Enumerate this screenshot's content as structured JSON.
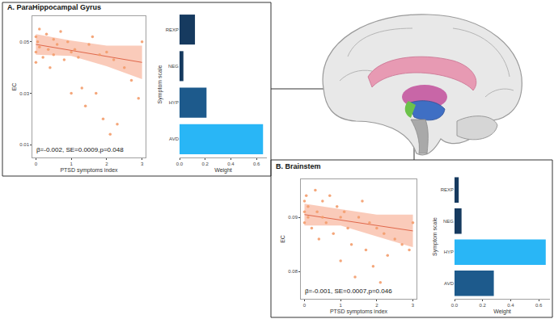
{
  "chart_data": [
    {
      "type": "scatter",
      "title": "A. ParaHippocampal Gyrus",
      "x_label": "PTSD symptoms index",
      "y_label": "EC",
      "x": [
        0,
        0,
        0,
        0.05,
        0.1,
        0.1,
        0.2,
        0.3,
        0.35,
        0.4,
        0.5,
        0.5,
        0.6,
        0.7,
        0.8,
        0.9,
        1.0,
        1.0,
        1.1,
        1.2,
        1.3,
        1.4,
        1.5,
        1.6,
        1.7,
        1.8,
        1.9,
        2.0,
        2.1,
        2.2,
        2.3,
        2.5,
        2.7,
        2.9,
        3.0
      ],
      "values": [
        0.052,
        0.046,
        0.042,
        0.05,
        0.055,
        0.048,
        0.044,
        0.053,
        0.047,
        0.04,
        0.051,
        0.045,
        0.049,
        0.054,
        0.043,
        0.05,
        0.046,
        0.03,
        0.047,
        0.044,
        0.032,
        0.025,
        0.049,
        0.052,
        0.03,
        0.045,
        0.02,
        0.046,
        0.014,
        0.043,
        0.018,
        0.04,
        0.035,
        0.028,
        0.05
      ],
      "fit": {
        "x": [
          0,
          3
        ],
        "values": [
          0.049,
          0.042
        ]
      },
      "ci": {
        "x": [
          0,
          1,
          2,
          3
        ],
        "lower": [
          0.045,
          0.0445,
          0.0405,
          0.0355
        ],
        "upper": [
          0.053,
          0.0505,
          0.0485,
          0.0485
        ]
      },
      "annotations": [
        "β=-0.002, SE=0.0009,p=0.048"
      ],
      "xlim": [
        -0.1,
        3.1
      ],
      "xticks": [
        0,
        1,
        2,
        3
      ],
      "ylim": [
        0.005,
        0.06
      ],
      "yticks": [
        0.01,
        0.03,
        0.05
      ],
      "color": "#f39c6b",
      "marker": "circle",
      "grid": false
    },
    {
      "type": "bar",
      "orientation": "horizontal",
      "x_label": "Weight",
      "y_label": "Symptom scale",
      "categories": [
        "REXP",
        "NEG",
        "HYP",
        "AVD"
      ],
      "values": [
        0.12,
        0.03,
        0.21,
        0.65
      ],
      "colors": [
        "#163a5f",
        "#163a5f",
        "#1d5a8c",
        "#29b6f6"
      ],
      "xlim": [
        0,
        0.68
      ],
      "xticks": [
        {
          "value": 0,
          "label": "0.0"
        },
        0.2,
        0.4,
        0.6
      ],
      "grid": false
    },
    {
      "type": "scatter",
      "title": "B. Brainstem",
      "x_label": "PTSD symptoms index",
      "y_label": "EC",
      "x": [
        0,
        0,
        0,
        0.05,
        0.1,
        0.1,
        0.2,
        0.3,
        0.35,
        0.4,
        0.5,
        0.5,
        0.6,
        0.7,
        0.8,
        0.9,
        1.0,
        1.0,
        1.1,
        1.2,
        1.3,
        1.4,
        1.5,
        1.6,
        1.7,
        1.8,
        1.9,
        2.0,
        2.1,
        2.2,
        2.3,
        2.5,
        2.7,
        2.9,
        3.0
      ],
      "values": [
        0.093,
        0.091,
        0.089,
        0.094,
        0.092,
        0.09,
        0.088,
        0.095,
        0.091,
        0.086,
        0.093,
        0.09,
        0.089,
        0.094,
        0.087,
        0.092,
        0.09,
        0.082,
        0.091,
        0.088,
        0.085,
        0.079,
        0.09,
        0.093,
        0.084,
        0.089,
        0.081,
        0.088,
        0.078,
        0.087,
        0.083,
        0.086,
        0.085,
        0.084,
        0.089
      ],
      "fit": {
        "x": [
          0,
          3
        ],
        "values": [
          0.0905,
          0.0875
        ]
      },
      "ci": {
        "x": [
          0,
          1,
          2,
          3
        ],
        "lower": [
          0.0885,
          0.0885,
          0.0865,
          0.0845
        ],
        "upper": [
          0.0925,
          0.0915,
          0.0905,
          0.0905
        ]
      },
      "annotations": [
        "β=-0.001, SE=0.0007,p=0.046"
      ],
      "xlim": [
        -0.1,
        3.1
      ],
      "xticks": [
        0,
        1,
        2,
        3
      ],
      "ylim": [
        0.075,
        0.097
      ],
      "yticks": [
        0.08,
        0.09
      ],
      "color": "#f39c6b",
      "marker": "circle",
      "grid": false
    },
    {
      "type": "bar",
      "orientation": "horizontal",
      "x_label": "Weight",
      "y_label": "Symptom scale",
      "categories": [
        "REXP",
        "NEG",
        "HYP",
        "AVD"
      ],
      "values": [
        0.03,
        0.05,
        0.65,
        0.28
      ],
      "colors": [
        "#163a5f",
        "#163a5f",
        "#29b6f6",
        "#1d5a8c"
      ],
      "xlim": [
        0,
        0.68
      ],
      "xticks": [
        {
          "value": 0,
          "label": "0.0"
        },
        0.2,
        0.4,
        0.6
      ],
      "grid": false
    }
  ]
}
